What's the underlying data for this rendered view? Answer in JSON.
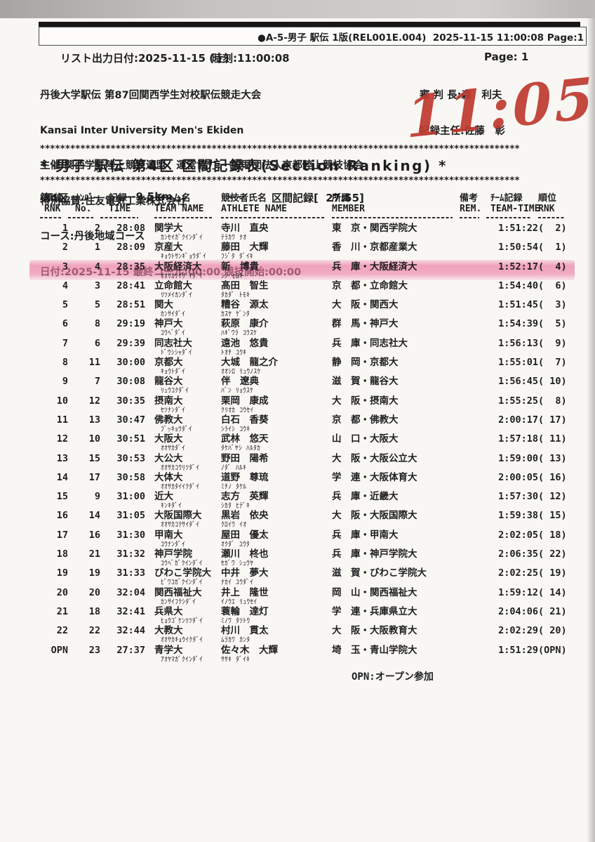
{
  "print_header": {
    "text": "●A-5-男子 駅伝 1版(REL001E.004)  2025-11-15 11:00:08 Page:1"
  },
  "meta": {
    "list_date": "リスト出力日付:2025-11-15 (土)",
    "time": "時刻:11:00:08",
    "page": "Page: 1"
  },
  "event": {
    "title_jp": "丹後大学駅伝 第87回関西学生対校駅伝競走大会",
    "title_en": "Kansai Inter University Men's Ekiden",
    "organizer": "主催:関西学生陸上競技連盟　運営協力:一般財団法人京都陸上競技協会",
    "sponsor": "特別協賛:住友電気工業株式会社",
    "course": "コース:丹後地域コース",
    "date_line": "日付:2025-11-15 最終コール:00:00 競技開始:00:00",
    "referee": "審 判 長:森　利夫",
    "recorder": "記録主任:佐藤　彰"
  },
  "handwriting": {
    "text": "11:05",
    "color": "#bf3a2f"
  },
  "section": {
    "stars": "***********************************************************************************************",
    "title": "* 男子 駅伝 第4区 区間記録表(Section Ranking) *",
    "zone": "第4区",
    "distance": "---9.5km",
    "dash": "---",
    "record": "区間記録[  27:55]"
  },
  "table": {
    "headers": [
      {
        "jp": "順位",
        "en": "RNK"
      },
      {
        "jp": "ﾅﾝﾊﾞｰ",
        "en": "No."
      },
      {
        "jp": "記録",
        "en": "TIME"
      },
      {
        "jp": "チーム名",
        "en": "TEAM NAME"
      },
      {
        "jp": "競技者氏名",
        "en": "ATHLETE NAME"
      },
      {
        "jp": "所属",
        "en": "MEMBER"
      },
      {
        "jp": "備考",
        "en": "REM."
      },
      {
        "jp": "ﾁｰﾑ記録",
        "en": "TEAM-TIME"
      },
      {
        "jp": "順位",
        "en": "RNK"
      }
    ],
    "rows": [
      {
        "rnk": "1",
        "no": "2",
        "time": "28:08",
        "team": "関学大",
        "team_kana": "ｶﾝｾｲｶﾞｸｲﾝﾀﾞｲ",
        "name": "寺川　直央",
        "name_kana": "ﾃﾗｶﾜ ﾅｵ",
        "member": "東　京・関西学院大",
        "rem": "",
        "team_time": "1:51:22",
        "team_rank": "(  2)"
      },
      {
        "rnk": "2",
        "no": "1",
        "time": "28:09",
        "team": "京産大",
        "team_kana": "ｷｮｳﾄｻﾝｷﾞｮｳﾀﾞｲ",
        "name": "藤田　大輝",
        "name_kana": "ﾌｼﾞﾀ ﾀﾞｲｷ",
        "member": "香　川・京都産業大",
        "rem": "",
        "team_time": "1:50:54",
        "team_rank": "(  1)"
      },
      {
        "rnk": "3",
        "no": "4",
        "time": "28:35",
        "team": "大阪経済大",
        "team_kana": "ｵｵｻｶｹｲｻﾞｲﾀﾞｲ",
        "name": "新　博貴",
        "name_kana": "ｼﾝ ﾋﾛｷ",
        "member": "兵　庫・大阪経済大",
        "rem": "",
        "team_time": "1:52:17",
        "team_rank": "(  4)",
        "highlight": true
      },
      {
        "rnk": "4",
        "no": "3",
        "time": "28:41",
        "team": "立命館大",
        "team_kana": "ﾘﾂﾒｲｶﾝﾀﾞｲ",
        "name": "髙田　智生",
        "name_kana": "ﾀｶﾀﾞ ﾄﾓｷ",
        "member": "京　都・立命館大",
        "rem": "",
        "team_time": "1:54:40",
        "team_rank": "(  6)"
      },
      {
        "rnk": "5",
        "no": "5",
        "time": "28:51",
        "team": "関大",
        "team_kana": "ｶﾝｻｲﾀﾞｲ",
        "name": "糟谷　源太",
        "name_kana": "ｶｽﾔ ｹﾞﾝﾀ",
        "member": "大　阪・関西大",
        "rem": "",
        "team_time": "1:51:45",
        "team_rank": "(  3)"
      },
      {
        "rnk": "6",
        "no": "8",
        "time": "29:19",
        "team": "神戸大",
        "team_kana": "ｺｳﾍﾞﾀﾞｲ",
        "name": "萩原　康介",
        "name_kana": "ﾊｷﾞﾜﾗ ｺｳｽｹ",
        "member": "群　馬・神戸大",
        "rem": "",
        "team_time": "1:54:39",
        "team_rank": "(  5)"
      },
      {
        "rnk": "7",
        "no": "6",
        "time": "29:39",
        "team": "同志社大",
        "team_kana": "ﾄﾞｳｼｼｬﾀﾞｲ",
        "name": "遠池　悠貴",
        "name_kana": "ﾄｵﾁ ﾕｳｷ",
        "member": "兵　庫・同志社大",
        "rem": "",
        "team_time": "1:56:13",
        "team_rank": "(  9)"
      },
      {
        "rnk": "8",
        "no": "11",
        "time": "30:00",
        "team": "京都大",
        "team_kana": "ｷｮｳﾄﾀﾞｲ",
        "name": "大城　龍之介",
        "name_kana": "ｵｵｼﾛ ﾘｭｳﾉｽｹ",
        "member": "静　岡・京都大",
        "rem": "",
        "team_time": "1:55:01",
        "team_rank": "(  7)"
      },
      {
        "rnk": "9",
        "no": "7",
        "time": "30:08",
        "team": "龍谷大",
        "team_kana": "ﾘｭｳｺｸﾀﾞｲ",
        "name": "伴　遼典",
        "name_kana": "ﾊﾞﾝ ﾘｮｳｽｹ",
        "member": "滋　賀・龍谷大",
        "rem": "",
        "team_time": "1:56:45",
        "team_rank": "( 10)"
      },
      {
        "rnk": "10",
        "no": "12",
        "time": "30:35",
        "team": "摂南大",
        "team_kana": "ｾﾂﾅﾝﾀﾞｲ",
        "name": "栗岡　康成",
        "name_kana": "ｸﾘｵｶ ｺｳｾｲ",
        "member": "大　阪・摂南大",
        "rem": "",
        "team_time": "1:55:25",
        "team_rank": "(  8)"
      },
      {
        "rnk": "11",
        "no": "13",
        "time": "30:47",
        "team": "佛教大",
        "team_kana": "ﾌﾞｯｷｮｳﾀﾞｲ",
        "name": "白石　香葵",
        "name_kana": "ｼﾗｲｼ ｺｳｷ",
        "member": "京　都・佛教大",
        "rem": "",
        "team_time": "2:00:17",
        "team_rank": "( 17)"
      },
      {
        "rnk": "12",
        "no": "10",
        "time": "30:51",
        "team": "大阪大",
        "team_kana": "ｵｵｻｶﾀﾞｲ",
        "name": "武林　悠天",
        "name_kana": "ﾀｹﾊﾞﾔｼ ﾊﾙﾀｶ",
        "member": "山　口・大阪大",
        "rem": "",
        "team_time": "1:57:18",
        "team_rank": "( 11)"
      },
      {
        "rnk": "13",
        "no": "15",
        "time": "30:53",
        "team": "大公大",
        "team_kana": "ｵｵｻｶｺｳﾘﾂﾀﾞｲ",
        "name": "野田　陽希",
        "name_kana": "ﾉﾀﾞ ﾊﾙｷ",
        "member": "大　阪・大阪公立大",
        "rem": "",
        "team_time": "1:59:00",
        "team_rank": "( 13)"
      },
      {
        "rnk": "14",
        "no": "17",
        "time": "30:58",
        "team": "大体大",
        "team_kana": "ｵｵｻｶﾀｲｲｸﾀﾞｲ",
        "name": "道野　尊琉",
        "name_kana": "ﾐﾁﾉ ﾀｹﾙ",
        "member": "学　連・大阪体育大",
        "rem": "",
        "team_time": "2:00:05",
        "team_rank": "( 16)"
      },
      {
        "rnk": "15",
        "no": "9",
        "time": "31:00",
        "team": "近大",
        "team_kana": "ｷﾝｷﾀﾞｲ",
        "name": "志方　英輝",
        "name_kana": "ｼｶﾀ ﾋﾃﾞｷ",
        "member": "兵　庫・近畿大",
        "rem": "",
        "team_time": "1:57:30",
        "team_rank": "( 12)"
      },
      {
        "rnk": "16",
        "no": "14",
        "time": "31:05",
        "team": "大阪国際大",
        "team_kana": "ｵｵｻｶｺｸｻｲﾀﾞｲ",
        "name": "黒岩　依央",
        "name_kana": "ｸﾛｲﾜ ｲｵ",
        "member": "大　阪・大阪国際大",
        "rem": "",
        "team_time": "1:59:38",
        "team_rank": "( 15)"
      },
      {
        "rnk": "17",
        "no": "16",
        "time": "31:30",
        "team": "甲南大",
        "team_kana": "ｺｳﾅﾝﾀﾞｲ",
        "name": "屋田　優太",
        "name_kana": "ｵｸﾀﾞ ﾕｳﾀ",
        "member": "兵　庫・甲南大",
        "rem": "",
        "team_time": "2:02:05",
        "team_rank": "( 18)"
      },
      {
        "rnk": "18",
        "no": "21",
        "time": "31:32",
        "team": "神戸学院",
        "team_kana": "ｺｳﾍﾞｶﾞｸｲﾝﾀﾞｲ",
        "name": "瀬川　柊也",
        "name_kana": "ｾｶﾞﾜ ｼｭｳﾔ",
        "member": "兵　庫・神戸学院大",
        "rem": "",
        "team_time": "2:06:35",
        "team_rank": "( 22)"
      },
      {
        "rnk": "19",
        "no": "19",
        "time": "31:33",
        "team": "びわこ学院大",
        "team_kana": "ﾋﾞﾜｺｶﾞｸｲﾝﾀﾞｲ",
        "name": "中井　夢大",
        "name_kana": "ﾅｶｲ ﾕｳﾀﾞｲ",
        "member": "滋　賀・びわこ学院大",
        "rem": "",
        "team_time": "2:02:25",
        "team_rank": "( 19)"
      },
      {
        "rnk": "20",
        "no": "20",
        "time": "32:04",
        "team": "関西福祉大",
        "team_kana": "ｶﾝｻｲﾌｸｼﾀﾞｲ",
        "name": "井上　隆世",
        "name_kana": "ｲﾉｳｴ ﾘｭｳｾｲ",
        "member": "岡　山・関西福祉大",
        "rem": "",
        "team_time": "1:59:12",
        "team_rank": "( 14)"
      },
      {
        "rnk": "21",
        "no": "18",
        "time": "32:41",
        "team": "兵県大",
        "team_kana": "ﾋｮｳｺﾞｹﾝﾘﾂﾀﾞｲ",
        "name": "蓑輪　達灯",
        "name_kana": "ﾐﾉﾜ ﾀﾂﾄｳ",
        "member": "学　連・兵庫県立大",
        "rem": "",
        "team_time": "2:04:06",
        "team_rank": "( 21)"
      },
      {
        "rnk": "22",
        "no": "22",
        "time": "32:44",
        "team": "大教大",
        "team_kana": "ｵｵｻｶｷｮｳｲｸﾀﾞｲ",
        "name": "村川　貫太",
        "name_kana": "ﾑﾗｶﾜ ｶﾝﾀ",
        "member": "大　阪・大阪教育大",
        "rem": "",
        "team_time": "2:02:29",
        "team_rank": "( 20)"
      },
      {
        "rnk": "OPN",
        "no": "23",
        "time": "27:37",
        "team": "青学大",
        "team_kana": "ｱｵﾔﾏｶﾞｸｲﾝﾀﾞｲ",
        "name": "佐々木　大輝",
        "name_kana": "ｻｻｷ ﾀﾞｲｷ",
        "member": "埼　玉・青山学院大",
        "rem": "",
        "team_time": "1:51:29",
        "team_rank": "(OPN)"
      }
    ],
    "footnote": "OPN:オープン参加"
  },
  "colors": {
    "highlight_pink": "#ec7aa3",
    "handwriting_red": "#bf3a2f",
    "paper": "#f9f7f3"
  }
}
